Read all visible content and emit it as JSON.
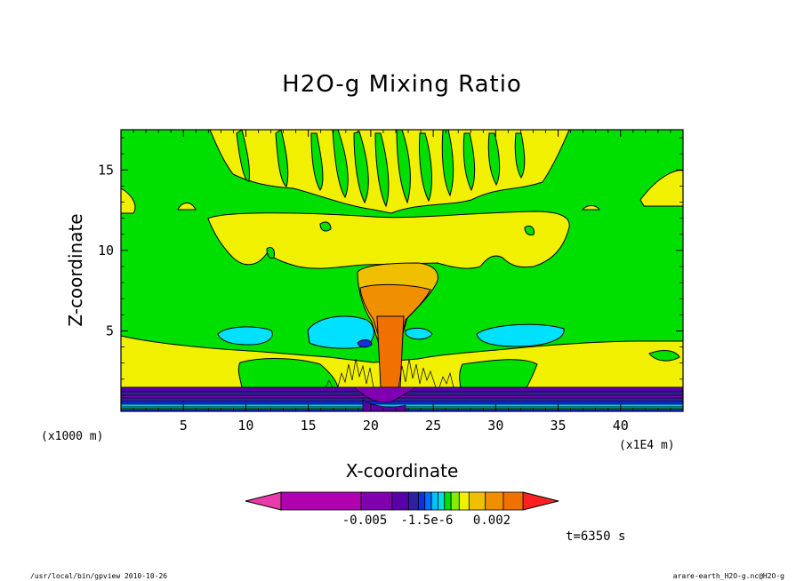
{
  "chart_data": {
    "type": "heatmap",
    "title": "H2O-g Mixing Ratio",
    "xlabel": "X-coordinate",
    "ylabel": "Z-coordinate",
    "x_units": "(x1E4 m)",
    "y_units": "(x1000 m)",
    "xlim": [
      0,
      45
    ],
    "ylim": [
      0,
      17.5
    ],
    "x_ticks": [
      5,
      10,
      15,
      20,
      25,
      30,
      35,
      40
    ],
    "y_ticks": [
      5,
      10,
      15
    ],
    "colorbar": {
      "colors": [
        "#e83aa8",
        "#b000b0",
        "#8000b0",
        "#5a00a8",
        "#3020a0",
        "#1030e8",
        "#0070ff",
        "#00c0ff",
        "#00e0e0",
        "#00e000",
        "#80f000",
        "#f0f000",
        "#f0c000",
        "#f09000",
        "#f07000",
        "#ff2020"
      ],
      "labels": [
        "-0.005",
        "-1.5e-6",
        "0.002"
      ]
    },
    "grid": false
  },
  "annotation": "t=6350 s",
  "footer": {
    "left": "/usr/local/bin/gpview   2010-10-26",
    "right": "arare-earth_H2O-g.nc@H2O-g"
  }
}
